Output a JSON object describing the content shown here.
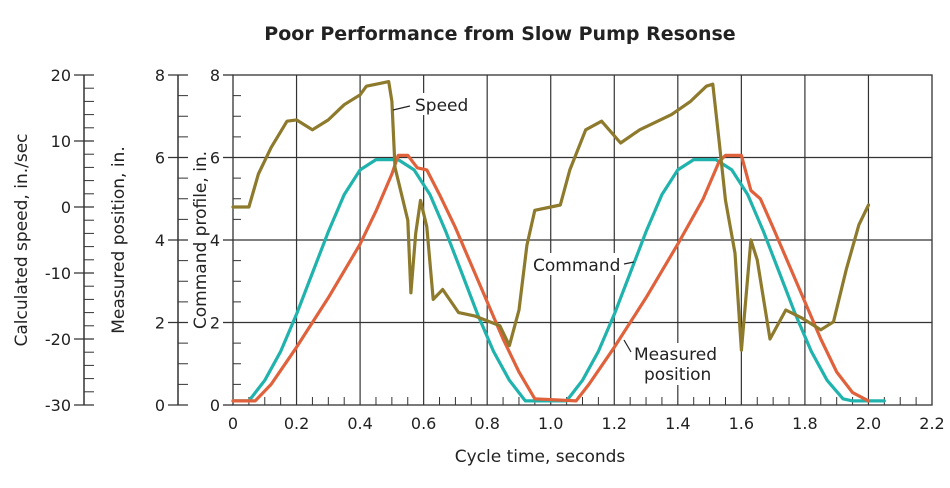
{
  "chart_data": {
    "type": "line",
    "title": "Poor Performance from Slow Pump Resonse",
    "xlabel": "Cycle time, seconds",
    "xlim": [
      0,
      2.2
    ],
    "xticks": [
      "0",
      "0.2",
      "0.4",
      "0.6",
      "0.8",
      "1.0",
      "1.2",
      "1.4",
      "1.6",
      "1.8",
      "2.0",
      "2.2"
    ],
    "grid": true,
    "axes": [
      {
        "label": "Calculated speed, in./sec",
        "ylim": [
          -30,
          20
        ],
        "ticks": [
          "20",
          "10",
          "0",
          "-10",
          "-20",
          "-30"
        ]
      },
      {
        "label": "Measured position, in.",
        "ylim": [
          0,
          8
        ],
        "ticks": [
          "8",
          "6",
          "4",
          "2",
          "0"
        ]
      },
      {
        "label": "Command profile, in.",
        "ylim": [
          0,
          8
        ],
        "ticks": [
          "8",
          "6",
          "4",
          "2",
          "0"
        ]
      }
    ],
    "series": [
      {
        "name": "Command",
        "axis": "Command profile, in.",
        "color": "#20b3ad",
        "x": [
          0,
          0.05,
          0.1,
          0.15,
          0.2,
          0.25,
          0.3,
          0.35,
          0.4,
          0.45,
          0.52,
          0.57,
          0.62,
          0.67,
          0.72,
          0.77,
          0.82,
          0.87,
          0.92,
          1.05,
          1.1,
          1.15,
          1.2,
          1.25,
          1.3,
          1.35,
          1.4,
          1.45,
          1.52,
          1.57,
          1.62,
          1.67,
          1.72,
          1.77,
          1.82,
          1.87,
          1.92,
          1.95,
          2.05
        ],
        "y": [
          0.1,
          0.1,
          0.6,
          1.3,
          2.2,
          3.2,
          4.2,
          5.1,
          5.7,
          5.95,
          5.95,
          5.7,
          5.1,
          4.2,
          3.2,
          2.2,
          1.3,
          0.6,
          0.1,
          0.1,
          0.6,
          1.3,
          2.2,
          3.2,
          4.2,
          5.1,
          5.7,
          5.95,
          5.95,
          5.7,
          5.1,
          4.2,
          3.2,
          2.2,
          1.3,
          0.6,
          0.15,
          0.1,
          0.1
        ]
      },
      {
        "name": "Measured position",
        "axis": "Measured position, in.",
        "color": "#e0623c",
        "x": [
          0,
          0.07,
          0.12,
          0.2,
          0.3,
          0.4,
          0.45,
          0.5,
          0.52,
          0.55,
          0.58,
          0.61,
          0.65,
          0.7,
          0.75,
          0.8,
          0.85,
          0.9,
          0.95,
          1.08,
          1.12,
          1.2,
          1.3,
          1.4,
          1.48,
          1.53,
          1.55,
          1.6,
          1.63,
          1.66,
          1.7,
          1.75,
          1.8,
          1.85,
          1.9,
          1.95,
          2.0
        ],
        "y": [
          0.1,
          0.1,
          0.5,
          1.4,
          2.6,
          3.9,
          4.7,
          5.6,
          6.05,
          6.05,
          5.75,
          5.7,
          5.1,
          4.3,
          3.4,
          2.5,
          1.6,
          0.8,
          0.15,
          0.1,
          0.5,
          1.4,
          2.6,
          3.9,
          5.0,
          5.9,
          6.05,
          6.05,
          5.2,
          5.0,
          4.3,
          3.4,
          2.5,
          1.6,
          0.8,
          0.3,
          0.1
        ]
      },
      {
        "name": "Speed",
        "axis": "Calculated speed, in./sec",
        "color": "#8e7a2c",
        "x": [
          0,
          0.05,
          0.08,
          0.12,
          0.17,
          0.2,
          0.25,
          0.3,
          0.35,
          0.4,
          0.42,
          0.47,
          0.49,
          0.5,
          0.51,
          0.53,
          0.55,
          0.56,
          0.575,
          0.59,
          0.61,
          0.63,
          0.66,
          0.71,
          0.76,
          0.84,
          0.87,
          0.9,
          0.925,
          0.95,
          1.0,
          1.03,
          1.06,
          1.11,
          1.16,
          1.22,
          1.28,
          1.38,
          1.44,
          1.49,
          1.51,
          1.53,
          1.55,
          1.58,
          1.6,
          1.63,
          1.65,
          1.69,
          1.74,
          1.79,
          1.85,
          1.89,
          1.93,
          1.97,
          2.0
        ],
        "y": [
          0,
          0,
          5,
          9,
          13,
          13.2,
          11.7,
          13.2,
          15.5,
          17,
          18.3,
          18.8,
          19,
          16,
          6,
          2,
          -2,
          -13,
          -4,
          1,
          -3,
          -14,
          -12.5,
          -16,
          -16.5,
          -18,
          -21,
          -15.6,
          -5.8,
          -0.5,
          0,
          0.3,
          5.6,
          11.7,
          13,
          9.7,
          11.7,
          14,
          16,
          18.3,
          18.6,
          10,
          1,
          -7,
          -21.7,
          -5,
          -8,
          -20,
          -15.6,
          -16.8,
          -18.6,
          -17.4,
          -9.5,
          -2.7,
          0.3
        ]
      }
    ],
    "annotations": [
      "Speed",
      "Command",
      "Measured",
      "position"
    ]
  }
}
